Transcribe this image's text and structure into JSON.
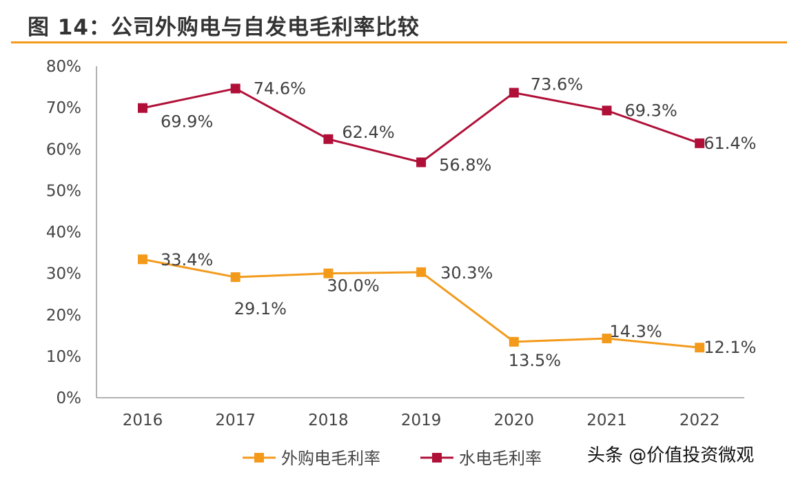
{
  "title": "图 14：公司外购电与自发电毛利率比较",
  "watermark": "头条 @价值投资微观",
  "colors": {
    "accent_rule": "#f39a1b",
    "purchased": "#f39a1b",
    "hydro": "#b01038"
  },
  "chart_data": {
    "type": "line",
    "title": "图 14：公司外购电与自发电毛利率比较",
    "categories": [
      "2016",
      "2017",
      "2018",
      "2019",
      "2020",
      "2021",
      "2022"
    ],
    "ylim": [
      0,
      80
    ],
    "yticks": [
      "0%",
      "10%",
      "20%",
      "30%",
      "40%",
      "50%",
      "60%",
      "70%",
      "80%"
    ],
    "ytick_values": [
      0,
      10,
      20,
      30,
      40,
      50,
      60,
      70,
      80
    ],
    "grid": false,
    "legend_position": "bottom",
    "series": [
      {
        "name": "外购电毛利率",
        "color": "#f39a1b",
        "marker": "square",
        "values": [
          33.4,
          29.1,
          30.0,
          30.3,
          13.5,
          14.3,
          12.1
        ],
        "labels": [
          "33.4%",
          "29.1%",
          "30.0%",
          "30.3%",
          "13.5%",
          "14.3%",
          "12.1%"
        ]
      },
      {
        "name": "水电毛利率",
        "color": "#b01038",
        "marker": "square",
        "values": [
          69.9,
          74.6,
          62.4,
          56.8,
          73.6,
          69.3,
          61.4
        ],
        "labels": [
          "69.9%",
          "74.6%",
          "62.4%",
          "56.8%",
          "73.6%",
          "69.3%",
          "61.4%"
        ]
      }
    ]
  }
}
